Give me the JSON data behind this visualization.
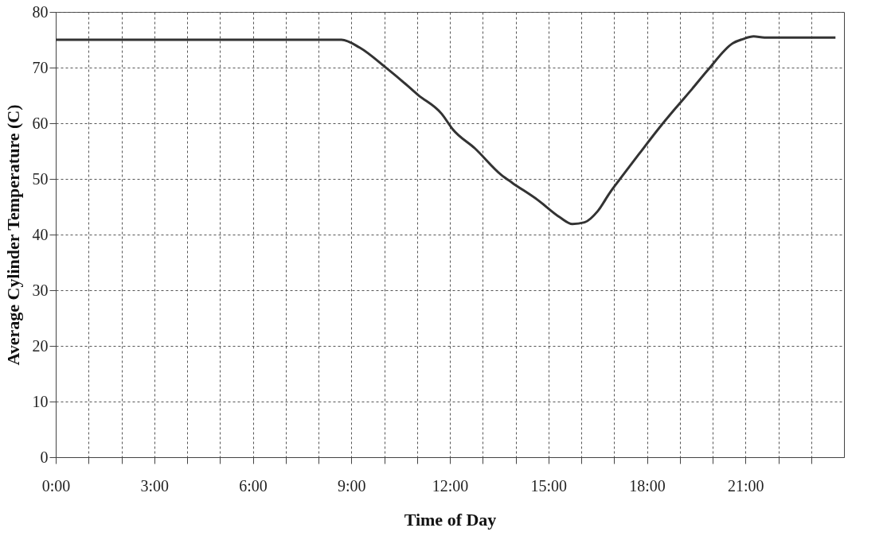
{
  "chart_data": {
    "type": "line",
    "xlabel": "Time of Day",
    "ylabel": "Average Cylinder Temperature (C)",
    "x": [
      0,
      3,
      6,
      8.7,
      9.25,
      10.07,
      10.7,
      11.03,
      11.75,
      12.09,
      12.76,
      13.57,
      13.9,
      14.68,
      15.35,
      15.73,
      16.1,
      16.5,
      16.88,
      17.17,
      17.75,
      18.42,
      18.9,
      19.38,
      19.86,
      20.62,
      20.91,
      21.25,
      21.58,
      23.74
    ],
    "series": [
      {
        "color": "#333333",
        "values": [
          75,
          75,
          75,
          75,
          73.6,
          69.9,
          66.8,
          65.1,
          61.7,
          58.9,
          55.5,
          50.7,
          49.3,
          46.2,
          43.1,
          41.9,
          42.2,
          44.2,
          47.6,
          49.9,
          54.4,
          59.5,
          62.9,
          66.2,
          69.6,
          74.4,
          75.1,
          75.6,
          75.4,
          75.4
        ]
      }
    ],
    "xlim": [
      0,
      24
    ],
    "xticks": [
      {
        "value": 0,
        "label": "0:00"
      },
      {
        "value": 1,
        "label": null
      },
      {
        "value": 2,
        "label": null
      },
      {
        "value": 3,
        "label": "3:00"
      },
      {
        "value": 4,
        "label": null
      },
      {
        "value": 5,
        "label": null
      },
      {
        "value": 6,
        "label": "6:00"
      },
      {
        "value": 7,
        "label": null
      },
      {
        "value": 8,
        "label": null
      },
      {
        "value": 9,
        "label": "9:00"
      },
      {
        "value": 10,
        "label": null
      },
      {
        "value": 11,
        "label": null
      },
      {
        "value": 12,
        "label": "12:00"
      },
      {
        "value": 13,
        "label": null
      },
      {
        "value": 14,
        "label": null
      },
      {
        "value": 15,
        "label": "15:00"
      },
      {
        "value": 16,
        "label": null
      },
      {
        "value": 17,
        "label": null
      },
      {
        "value": 18,
        "label": "18:00"
      },
      {
        "value": 19,
        "label": null
      },
      {
        "value": 20,
        "label": null
      },
      {
        "value": 21,
        "label": "21:00"
      },
      {
        "value": 22,
        "label": null
      },
      {
        "value": 23,
        "label": null
      }
    ],
    "ylim": [
      0,
      80
    ],
    "yticks": [
      0,
      10,
      20,
      30,
      40,
      50,
      60,
      70,
      80
    ],
    "grid": true,
    "marker": "none",
    "line_style": "solid"
  }
}
